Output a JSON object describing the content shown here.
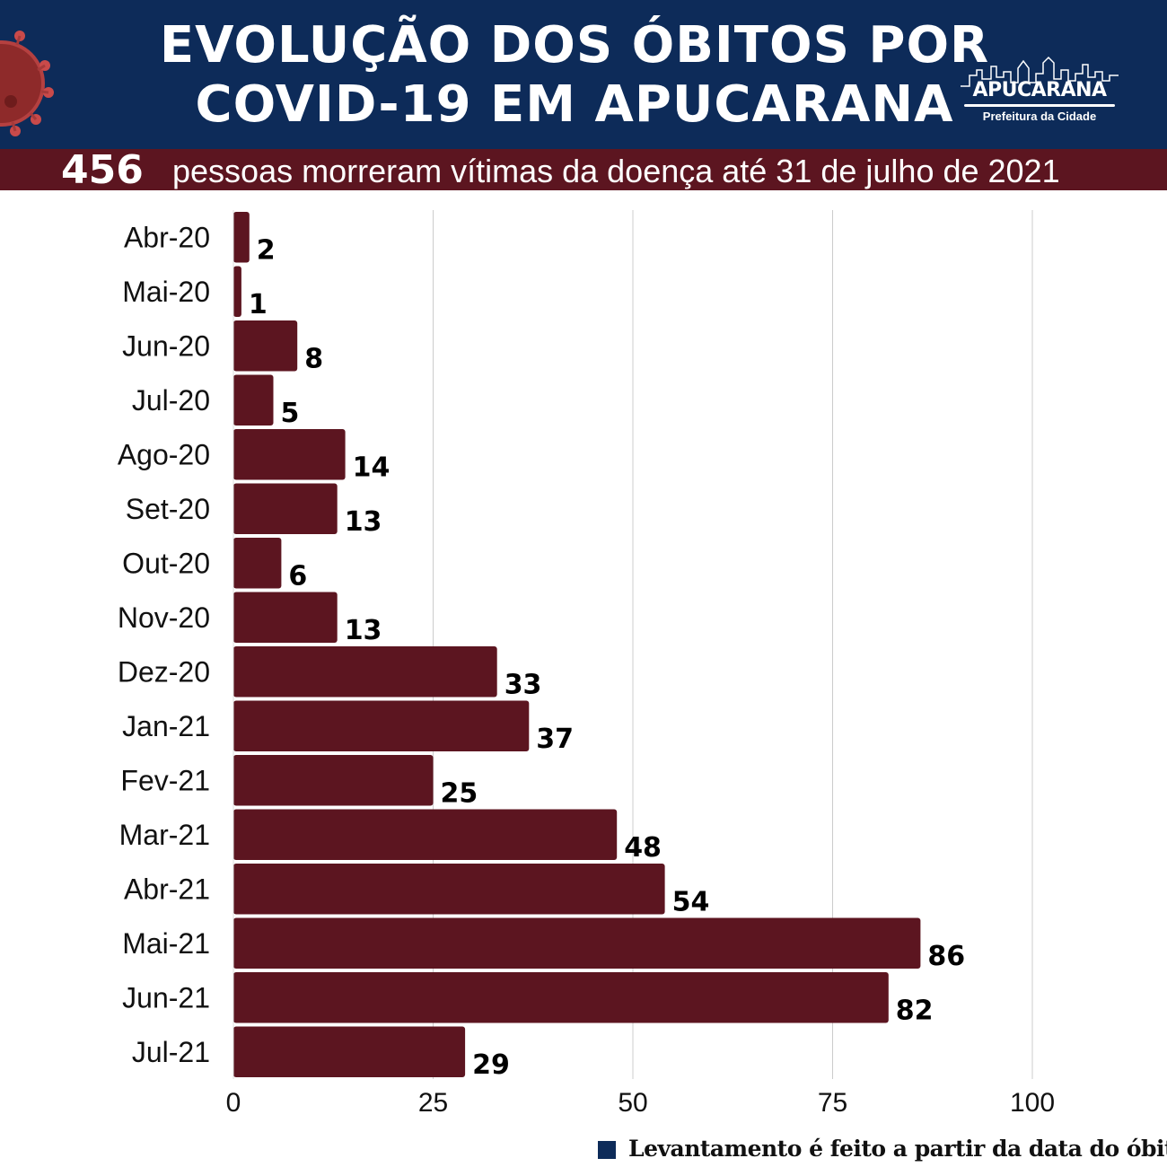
{
  "header": {
    "title_line1": "EVOLUÇÃO DOS ÓBITOS POR",
    "title_line2": "COVID-19 EM APUCARANA",
    "logo_name": "APUCARANA",
    "logo_sub": "Prefeitura da Cidade",
    "total": "456",
    "subtitle": "pessoas morreram vítimas da doença até 31 de julho de 2021"
  },
  "footnote": "Levantamento é feito a partir da data do óbito",
  "colors": {
    "header_bg": "#0d2b59",
    "subbar_bg": "#5c1520",
    "bar": "#5c1520",
    "grid": "#cccccc"
  },
  "chart_data": {
    "type": "bar",
    "orientation": "horizontal",
    "categories": [
      "Abr-20",
      "Mai-20",
      "Jun-20",
      "Jul-20",
      "Ago-20",
      "Set-20",
      "Out-20",
      "Nov-20",
      "Dez-20",
      "Jan-21",
      "Fev-21",
      "Mar-21",
      "Abr-21",
      "Mai-21",
      "Jun-21",
      "Jul-21"
    ],
    "values": [
      2,
      1,
      8,
      5,
      14,
      13,
      6,
      13,
      33,
      37,
      25,
      48,
      54,
      86,
      82,
      29
    ],
    "xlim": [
      0,
      100
    ],
    "xticks": [
      0,
      25,
      50,
      75,
      100
    ],
    "grid": true,
    "data_labels": true
  }
}
